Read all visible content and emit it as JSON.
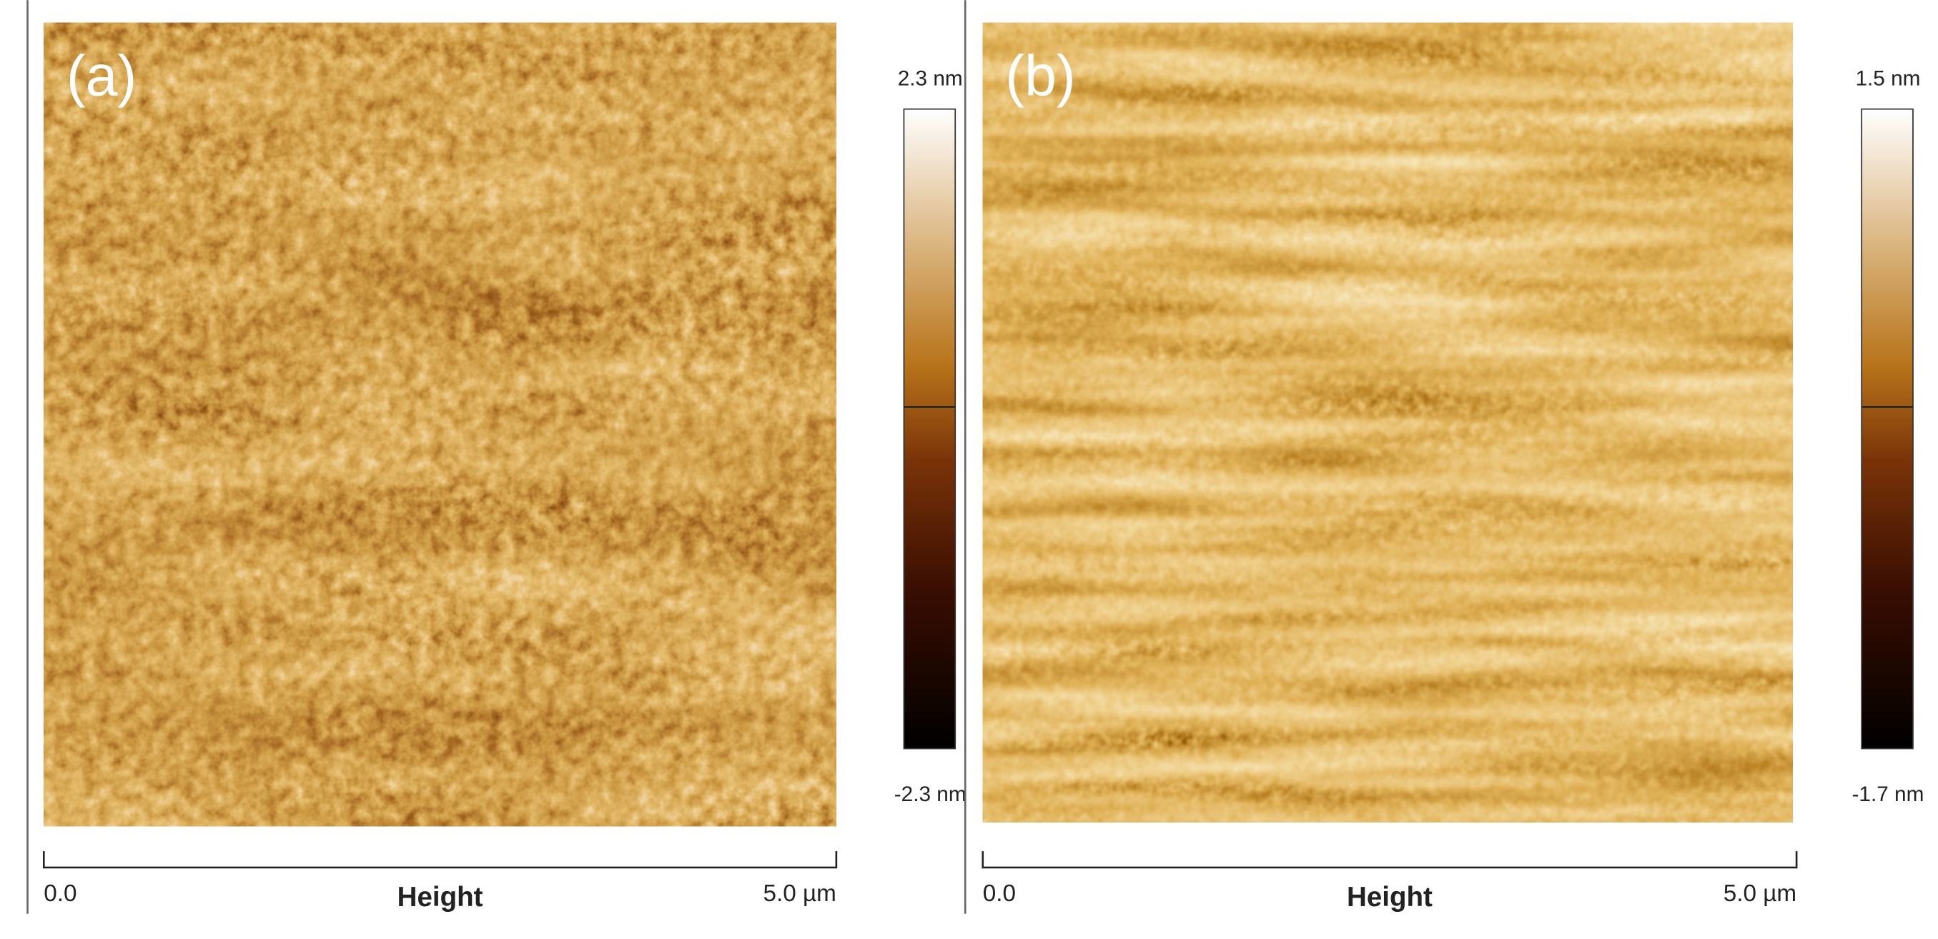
{
  "panels": [
    {
      "label": "(a)",
      "colorbar_max": "2.3 nm",
      "colorbar_min": "-2.3 nm",
      "scale_start": "0.0",
      "scale_title": "Height",
      "scale_end": "5.0 µm"
    },
    {
      "label": "(b)",
      "colorbar_max": "1.5 nm",
      "colorbar_min": "-1.7 nm",
      "scale_start": "0.0",
      "scale_title": "Height",
      "scale_end": "5.0 µm"
    }
  ]
}
